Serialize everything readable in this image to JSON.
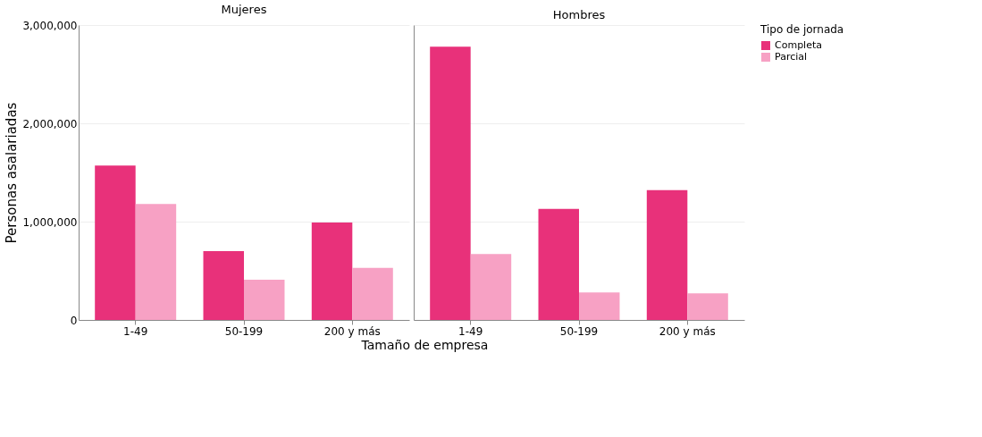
{
  "chart_data": [
    {
      "type": "bar",
      "title": "Mujeres",
      "xlabel": "Tamaño de empresa",
      "ylabel": "Personas asalariadas",
      "categories": [
        "1-49",
        "50-199",
        "200 y más"
      ],
      "series": [
        {
          "name": "Completa",
          "color": "#e8317a",
          "values": [
            1570000,
            700000,
            990000
          ]
        },
        {
          "name": "Parcial",
          "color": "#f7a1c4",
          "values": [
            1180000,
            410000,
            530000
          ]
        }
      ],
      "ylim": [
        0,
        3000000
      ],
      "yticks": [
        0,
        {
          "value": 1000000,
          "label": "1,000,000"
        },
        {
          "value": 2000000,
          "label": "2,000,000"
        },
        {
          "value": 3000000,
          "label": "3,000,000"
        }
      ],
      "grid": "y",
      "legend": "right",
      "legend_title": "Tipo de jornada"
    },
    {
      "type": "bar",
      "title": "Hombres",
      "categories": [
        "1-49",
        "50-199",
        "200 y más"
      ],
      "series": [
        {
          "name": "Completa",
          "color": "#e8317a",
          "values": [
            2780000,
            1130000,
            1320000
          ]
        },
        {
          "name": "Parcial",
          "color": "#f7a1c4",
          "values": [
            670000,
            280000,
            270000
          ]
        }
      ],
      "ylim": [
        0,
        3000000
      ],
      "yticks": [
        0,
        1000000,
        2000000,
        3000000
      ],
      "grid": "y",
      "legend": "right",
      "tick_labels": "x"
    }
  ]
}
